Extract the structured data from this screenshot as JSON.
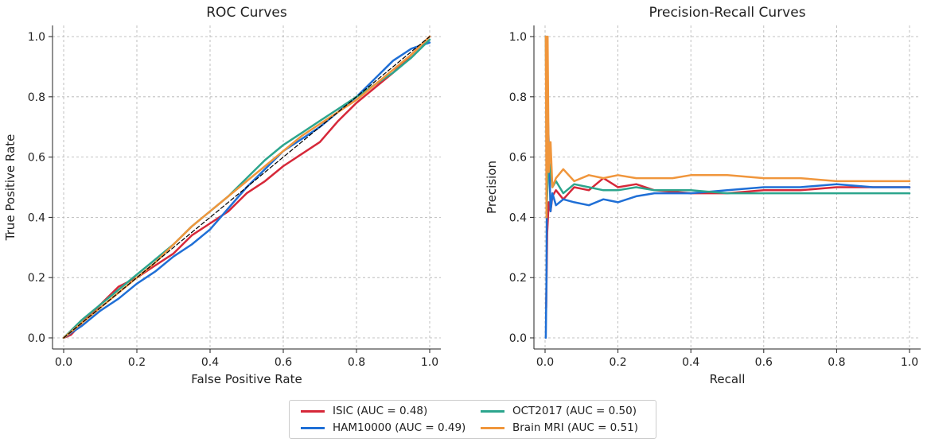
{
  "chart_data": [
    {
      "type": "line",
      "title": "ROC Curves",
      "xlabel": "False Positive Rate",
      "ylabel": "True Positive Rate",
      "xlim": [
        0,
        1
      ],
      "ylim": [
        0,
        1
      ],
      "xticks": [
        "0.0",
        "0.2",
        "0.4",
        "0.6",
        "0.8",
        "1.0"
      ],
      "yticks": [
        "0.0",
        "0.2",
        "0.4",
        "0.6",
        "0.8",
        "1.0"
      ],
      "grid": true,
      "series": [
        {
          "name": "ISIC",
          "color": "#d62839",
          "x": [
            0,
            0.02,
            0.05,
            0.1,
            0.15,
            0.2,
            0.25,
            0.3,
            0.35,
            0.4,
            0.45,
            0.5,
            0.55,
            0.6,
            0.65,
            0.7,
            0.75,
            0.8,
            0.85,
            0.9,
            0.95,
            1.0
          ],
          "y": [
            0,
            0.01,
            0.05,
            0.11,
            0.17,
            0.2,
            0.24,
            0.28,
            0.34,
            0.38,
            0.42,
            0.48,
            0.52,
            0.57,
            0.61,
            0.65,
            0.72,
            0.78,
            0.83,
            0.88,
            0.94,
            1.0
          ]
        },
        {
          "name": "HAM10000",
          "color": "#1f6fd6",
          "x": [
            0,
            0.05,
            0.1,
            0.15,
            0.2,
            0.25,
            0.3,
            0.35,
            0.4,
            0.45,
            0.5,
            0.55,
            0.6,
            0.65,
            0.7,
            0.75,
            0.8,
            0.85,
            0.9,
            0.95,
            1.0
          ],
          "y": [
            0,
            0.04,
            0.09,
            0.13,
            0.18,
            0.22,
            0.27,
            0.31,
            0.36,
            0.43,
            0.5,
            0.56,
            0.62,
            0.66,
            0.7,
            0.75,
            0.8,
            0.86,
            0.92,
            0.96,
            0.98
          ]
        },
        {
          "name": "OCT2017",
          "color": "#2ca58d",
          "x": [
            0,
            0.05,
            0.1,
            0.15,
            0.2,
            0.25,
            0.3,
            0.35,
            0.4,
            0.45,
            0.5,
            0.55,
            0.6,
            0.65,
            0.7,
            0.75,
            0.8,
            0.85,
            0.9,
            0.95,
            1.0
          ],
          "y": [
            0,
            0.06,
            0.11,
            0.16,
            0.21,
            0.26,
            0.31,
            0.37,
            0.42,
            0.47,
            0.53,
            0.59,
            0.64,
            0.68,
            0.72,
            0.76,
            0.8,
            0.84,
            0.88,
            0.93,
            0.99
          ]
        },
        {
          "name": "Brain MRI",
          "color": "#f0963c",
          "x": [
            0,
            0.05,
            0.1,
            0.15,
            0.2,
            0.25,
            0.3,
            0.35,
            0.4,
            0.45,
            0.5,
            0.55,
            0.6,
            0.65,
            0.7,
            0.75,
            0.8,
            0.85,
            0.9,
            0.95,
            1.0
          ],
          "y": [
            0,
            0.05,
            0.1,
            0.15,
            0.2,
            0.25,
            0.31,
            0.37,
            0.42,
            0.47,
            0.52,
            0.57,
            0.62,
            0.67,
            0.71,
            0.75,
            0.79,
            0.84,
            0.89,
            0.94,
            1.0
          ]
        },
        {
          "name": "chance",
          "color": "#000000",
          "dashed": true,
          "x": [
            0,
            1
          ],
          "y": [
            0,
            1
          ]
        }
      ]
    },
    {
      "type": "line",
      "title": "Precision-Recall Curves",
      "xlabel": "Recall",
      "ylabel": "Precision",
      "xlim": [
        0,
        1
      ],
      "ylim": [
        0,
        1
      ],
      "xticks": [
        "0.0",
        "0.2",
        "0.4",
        "0.6",
        "0.8",
        "1.0"
      ],
      "yticks": [
        "0.0",
        "0.2",
        "0.4",
        "0.6",
        "0.8",
        "1.0"
      ],
      "grid": true,
      "series": [
        {
          "name": "ISIC",
          "color": "#d62839",
          "x": [
            0.003,
            0.006,
            0.01,
            0.015,
            0.02,
            0.03,
            0.05,
            0.08,
            0.12,
            0.16,
            0.2,
            0.25,
            0.3,
            0.4,
            0.5,
            0.6,
            0.7,
            0.8,
            0.9,
            1.0
          ],
          "y": [
            0.1,
            0.35,
            0.45,
            0.42,
            0.47,
            0.49,
            0.46,
            0.5,
            0.49,
            0.53,
            0.5,
            0.51,
            0.49,
            0.48,
            0.48,
            0.49,
            0.49,
            0.5,
            0.5,
            0.5
          ]
        },
        {
          "name": "HAM10000",
          "color": "#1f6fd6",
          "x": [
            0.002,
            0.004,
            0.006,
            0.01,
            0.015,
            0.02,
            0.03,
            0.05,
            0.08,
            0.12,
            0.16,
            0.2,
            0.25,
            0.3,
            0.4,
            0.5,
            0.6,
            0.7,
            0.8,
            0.9,
            1.0
          ],
          "y": [
            0.0,
            0.2,
            0.8,
            0.65,
            0.42,
            0.48,
            0.44,
            0.46,
            0.45,
            0.44,
            0.46,
            0.45,
            0.47,
            0.48,
            0.48,
            0.49,
            0.5,
            0.5,
            0.51,
            0.5,
            0.5
          ]
        },
        {
          "name": "OCT2017",
          "color": "#2ca58d",
          "x": [
            0.002,
            0.005,
            0.01,
            0.02,
            0.03,
            0.05,
            0.08,
            0.12,
            0.16,
            0.2,
            0.25,
            0.3,
            0.4,
            0.5,
            0.6,
            0.7,
            0.8,
            0.9,
            1.0
          ],
          "y": [
            1.0,
            0.45,
            0.6,
            0.5,
            0.52,
            0.48,
            0.51,
            0.5,
            0.49,
            0.49,
            0.5,
            0.49,
            0.49,
            0.48,
            0.48,
            0.48,
            0.48,
            0.48,
            0.48
          ]
        },
        {
          "name": "Brain MRI",
          "color": "#f0963c",
          "x": [
            0.002,
            0.004,
            0.007,
            0.01,
            0.015,
            0.02,
            0.03,
            0.05,
            0.08,
            0.12,
            0.16,
            0.2,
            0.25,
            0.3,
            0.35,
            0.4,
            0.5,
            0.6,
            0.7,
            0.8,
            0.9,
            1.0
          ],
          "y": [
            1.0,
            0.4,
            1.0,
            0.55,
            0.65,
            0.5,
            0.53,
            0.56,
            0.52,
            0.54,
            0.53,
            0.54,
            0.53,
            0.53,
            0.53,
            0.54,
            0.54,
            0.53,
            0.53,
            0.52,
            0.52,
            0.52
          ]
        }
      ]
    }
  ],
  "legend": {
    "entries": [
      {
        "label": "ISIC (AUC = 0.48)",
        "color": "#d62839"
      },
      {
        "label": "HAM10000 (AUC = 0.49)",
        "color": "#1f6fd6"
      },
      {
        "label": "OCT2017 (AUC = 0.50)",
        "color": "#2ca58d"
      },
      {
        "label": "Brain MRI (AUC = 0.51)",
        "color": "#f0963c"
      }
    ]
  }
}
